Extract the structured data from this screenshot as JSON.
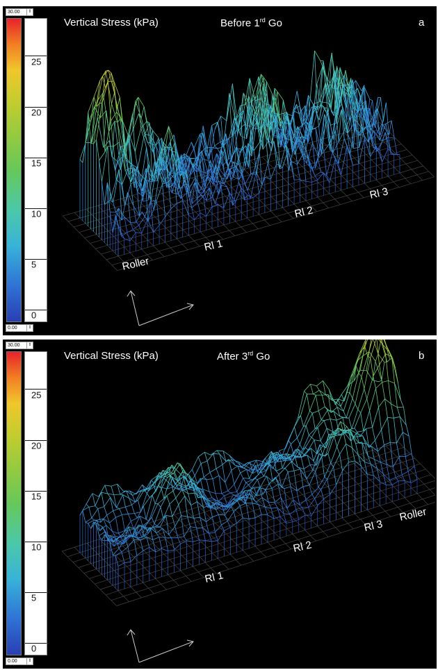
{
  "colorbar": {
    "max_value": "30.00",
    "min_value": "0.00",
    "ticks": [
      "25",
      "20",
      "15",
      "10",
      "5",
      "0"
    ],
    "colors": [
      "#2a3fb3",
      "#37b3d8",
      "#66c85a",
      "#c9cc2c",
      "#f0c72b",
      "#e8222a"
    ]
  },
  "chart_data": [
    {
      "type": "surface",
      "title": "Vertical Stress (kPa)",
      "subtitle_pre": "Before  1",
      "subtitle_sup": "rd",
      "subtitle_post": " Go",
      "panel_letter": "a",
      "color_scale": [
        0,
        30
      ],
      "positions": [
        "Roller",
        "Rl 1",
        "Rl 2",
        "Rl 3"
      ],
      "approx_peak_stress": {
        "Roller": 26,
        "Rl 1": 18,
        "Rl 2": 20,
        "Rl 3": 19
      }
    },
    {
      "type": "surface",
      "title": "Vertical Stress (kPa)",
      "subtitle_pre": "After 3",
      "subtitle_sup": "rd",
      "subtitle_post": " Go",
      "panel_letter": "b",
      "color_scale": [
        0,
        30
      ],
      "positions": [
        "Rl 1",
        "Rl  2",
        "Rl 3",
        "Roller"
      ],
      "approx_peak_stress": {
        "Rl 1": 12,
        "Rl  2": 14,
        "Rl 3": 20,
        "Roller": 27
      }
    }
  ]
}
